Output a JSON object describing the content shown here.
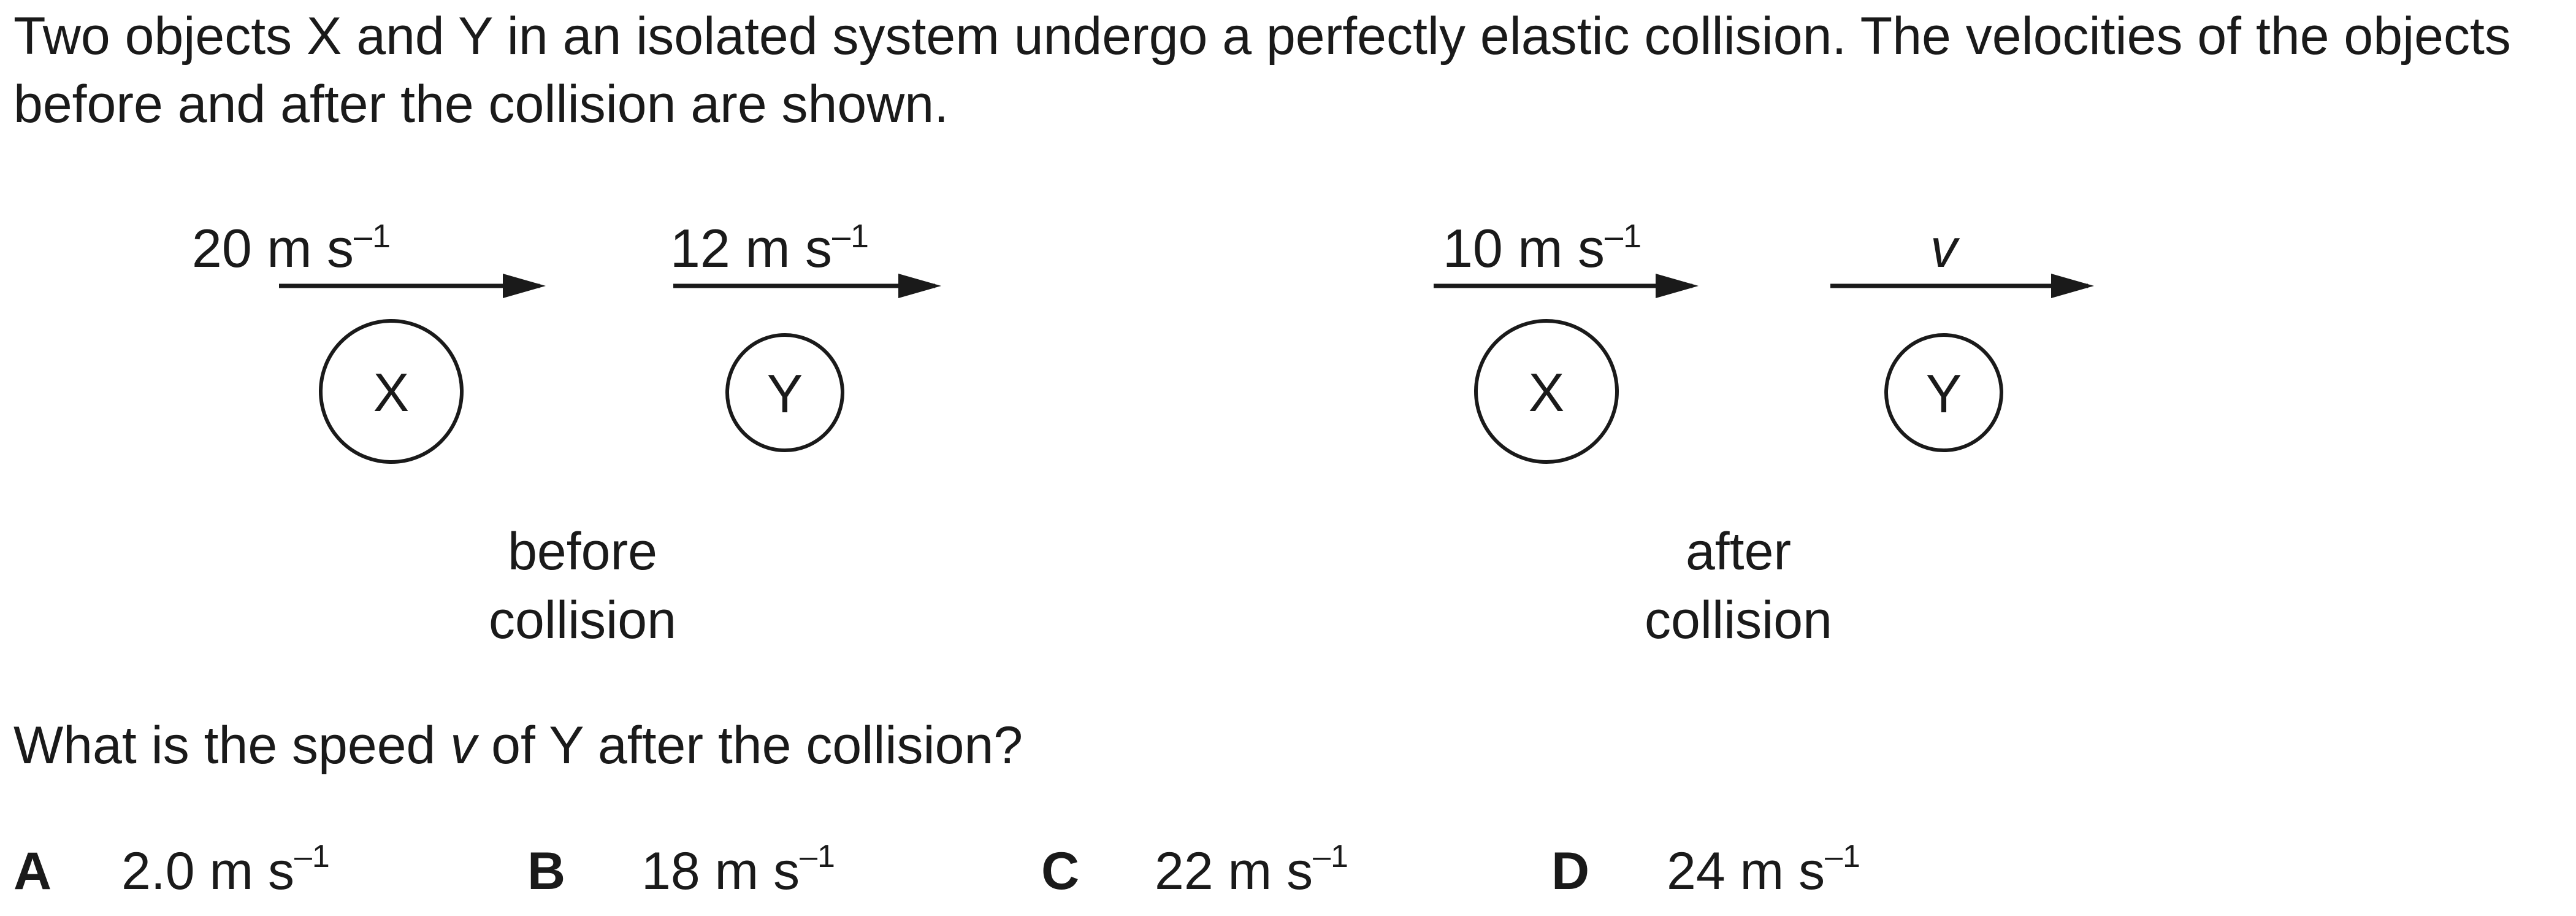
{
  "question": {
    "intro": "Two objects X and Y in an isolated system undergo a perfectly elastic collision. The velocities of the objects before and after the collision are shown.",
    "prompt_before": "What is the speed ",
    "prompt_var": "v",
    "prompt_after": " of Y after the collision?"
  },
  "diagram": {
    "before": {
      "x_velocity": "20 m s",
      "y_velocity": "12 m s",
      "caption_line1": "before",
      "caption_line2": "collision"
    },
    "after": {
      "x_velocity": "10 m s",
      "y_velocity": "v",
      "caption_line1": "after",
      "caption_line2": "collision"
    },
    "unit_superscript": "–1",
    "object_x_label": "X",
    "object_y_label": "Y"
  },
  "options": [
    {
      "letter": "A",
      "value": "2.0 m s",
      "sup": "–1"
    },
    {
      "letter": "B",
      "value": "18 m s",
      "sup": "–1"
    },
    {
      "letter": "C",
      "value": "22 m s",
      "sup": "–1"
    },
    {
      "letter": "D",
      "value": "24 m s",
      "sup": "–1"
    }
  ]
}
